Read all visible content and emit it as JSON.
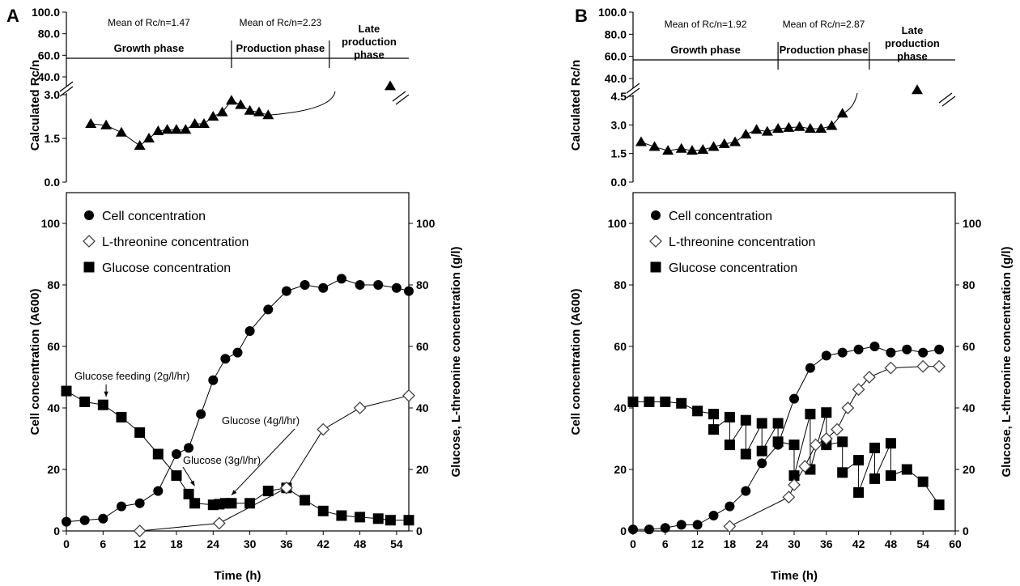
{
  "chart_data": [
    {
      "panel": "A",
      "rcn_chart": {
        "type": "line",
        "ylabel": "Calculated Rc/n",
        "lower_ticks": [
          "0.0",
          "1.5",
          "3.0"
        ],
        "upper_ticks": [
          "40.0",
          "60.0",
          "80.0",
          "100.0"
        ],
        "phases": [
          {
            "mean": "Mean of Rc/n=1.47",
            "name": "Growth phase",
            "x_start": 0,
            "x_end": 27
          },
          {
            "mean": "Mean of Rc/n=2.23",
            "name": "Production phase",
            "x_start": 27,
            "x_end": 43
          },
          {
            "mean": "",
            "name": "Late production phase",
            "x_start": 43,
            "x_end": 56
          }
        ],
        "points": [
          [
            4,
            2.0
          ],
          [
            6.5,
            1.95
          ],
          [
            9,
            1.7
          ],
          [
            12,
            1.25
          ],
          [
            13.5,
            1.5
          ],
          [
            15,
            1.75
          ],
          [
            16.5,
            1.8
          ],
          [
            18,
            1.8
          ],
          [
            19.5,
            1.8
          ],
          [
            21,
            2.0
          ],
          [
            22.5,
            2.0
          ],
          [
            24,
            2.25
          ],
          [
            25.5,
            2.4
          ],
          [
            27,
            2.8
          ],
          [
            28.5,
            2.65
          ],
          [
            30,
            2.45
          ],
          [
            31.5,
            2.4
          ],
          [
            33,
            2.3
          ]
        ],
        "late_point": [
          52,
          36
        ]
      },
      "main_chart": {
        "type": "line",
        "xlabel": "Time (h)",
        "ylabel": "Cell concentration (A600)",
        "y2label": "Glucose, L-threonine concentration (g/l)",
        "xticks": [
          "0",
          "6",
          "12",
          "18",
          "24",
          "30",
          "36",
          "42",
          "48",
          "54"
        ],
        "yticks": [
          "0",
          "20",
          "40",
          "60",
          "80",
          "100"
        ],
        "y2ticks": [
          "0",
          "20",
          "40",
          "60",
          "80",
          "100"
        ],
        "xlim": [
          0,
          56
        ],
        "ylim": [
          0,
          110
        ],
        "series": [
          {
            "name": "Cell concentration",
            "axis": "left",
            "marker": "circle",
            "x": [
              0,
              3,
              6,
              9,
              12,
              15,
              18,
              20,
              22,
              24,
              26,
              28,
              30,
              33,
              36,
              39,
              42,
              45,
              48,
              51,
              54,
              56
            ],
            "y": [
              3,
              3.5,
              4,
              8,
              9,
              13,
              25,
              27,
              38,
              49,
              56,
              58,
              65,
              72,
              78,
              80,
              79,
              82,
              80,
              80,
              79,
              78
            ]
          },
          {
            "name": "L-threonine concentration",
            "axis": "right",
            "marker": "diamond",
            "x": [
              12,
              25,
              36,
              42,
              48,
              56
            ],
            "y": [
              0,
              2.5,
              14,
              33,
              40,
              44
            ]
          },
          {
            "name": "Glucose concentration",
            "axis": "right",
            "marker": "square",
            "x": [
              0,
              3,
              6,
              9,
              12,
              15,
              18,
              20,
              21,
              24,
              25,
              26,
              27,
              30,
              33,
              36,
              39,
              42,
              45,
              48,
              51,
              53,
              56
            ],
            "y": [
              45.5,
              42,
              41,
              37,
              32,
              25,
              18,
              12,
              9,
              8.5,
              8.7,
              9,
              9,
              9,
              13,
              14,
              10,
              6.5,
              5,
              4.5,
              4,
              3.5,
              3.5
            ]
          }
        ],
        "annotations": [
          {
            "text": "Glucose feeding (2g/l/hr)",
            "anchor": [
              6.5,
              41
            ]
          },
          {
            "text": "Glucose (3g/l/hr)",
            "anchor": [
              21,
              12
            ]
          },
          {
            "text": "Glucose (4g/l/hr)",
            "anchor": [
              27,
              9
            ]
          }
        ]
      }
    },
    {
      "panel": "B",
      "rcn_chart": {
        "type": "line",
        "ylabel": "Calculated Rc/n",
        "lower_ticks": [
          "0.0",
          "1.5",
          "3.0",
          "4.5"
        ],
        "upper_ticks": [
          "40.0",
          "60.0",
          "80.0",
          "100.0"
        ],
        "phases": [
          {
            "mean": "Mean of Rc/n=1.92",
            "name": "Growth phase",
            "x_start": 0,
            "x_end": 27
          },
          {
            "mean": "Mean of Rc/n=2.87",
            "name": "Production phase",
            "x_start": 27,
            "x_end": 44
          },
          {
            "mean": "",
            "name": "Late production phase",
            "x_start": 44,
            "x_end": 60
          }
        ],
        "points": [
          [
            1.5,
            2.1
          ],
          [
            4,
            1.85
          ],
          [
            6.5,
            1.65
          ],
          [
            9,
            1.75
          ],
          [
            11,
            1.65
          ],
          [
            13,
            1.7
          ],
          [
            15,
            1.85
          ],
          [
            17,
            2.0
          ],
          [
            19,
            2.1
          ],
          [
            21,
            2.5
          ],
          [
            23,
            2.75
          ],
          [
            25,
            2.65
          ],
          [
            27,
            2.8
          ],
          [
            29,
            2.85
          ],
          [
            31,
            2.9
          ],
          [
            33,
            2.8
          ],
          [
            35,
            2.8
          ],
          [
            37,
            2.95
          ],
          [
            39,
            3.6
          ]
        ],
        "late_point": [
          53,
          34
        ]
      },
      "main_chart": {
        "type": "line",
        "xlabel": "Time (h)",
        "ylabel": "Cell concentration (A600)",
        "y2label": "Glucose, L-threonine concentration (g/l)",
        "xticks": [
          "0",
          "6",
          "12",
          "18",
          "24",
          "30",
          "36",
          "42",
          "48",
          "54",
          "60"
        ],
        "yticks": [
          "0",
          "20",
          "40",
          "60",
          "80",
          "100"
        ],
        "y2ticks": [
          "0",
          "20",
          "40",
          "60",
          "80",
          "100"
        ],
        "xlim": [
          0,
          60
        ],
        "ylim": [
          0,
          110
        ],
        "series": [
          {
            "name": "Cell concentration",
            "axis": "left",
            "marker": "circle",
            "x": [
              0,
              3,
              6,
              9,
              12,
              15,
              18,
              21,
              24,
              27,
              30,
              33,
              36,
              39,
              42,
              45,
              48,
              51,
              54,
              57
            ],
            "y": [
              0.5,
              0.5,
              1,
              2,
              2,
              5,
              8,
              13,
              22,
              28,
              43,
              53,
              57,
              58,
              59,
              60,
              58,
              59,
              58,
              59
            ]
          },
          {
            "name": "L-threonine concentration",
            "axis": "right",
            "marker": "diamond",
            "x": [
              18,
              29,
              30,
              32,
              34,
              36,
              38,
              40,
              42,
              44,
              48,
              54,
              57
            ],
            "y": [
              1.5,
              11,
              15,
              21,
              28,
              30,
              33,
              40,
              46,
              50,
              53,
              53.5,
              53.5
            ]
          },
          {
            "name": "Glucose concentration",
            "axis": "right",
            "marker": "square",
            "x": [
              0,
              3,
              6,
              9,
              12,
              15,
              15,
              18,
              18,
              21,
              21,
              24,
              24,
              27,
              27,
              30,
              30,
              33,
              33,
              36,
              36,
              39,
              39,
              42,
              42,
              45,
              45,
              48,
              48,
              51,
              54,
              57
            ],
            "y": [
              42,
              42,
              42,
              41.5,
              39,
              38,
              33,
              37,
              28,
              36,
              25,
              35,
              26,
              35,
              29,
              28,
              18,
              38,
              20,
              38.5,
              28,
              29,
              19,
              23,
              12.5,
              27,
              17,
              28.5,
              18,
              20,
              16,
              8.5
            ]
          }
        ]
      }
    }
  ]
}
